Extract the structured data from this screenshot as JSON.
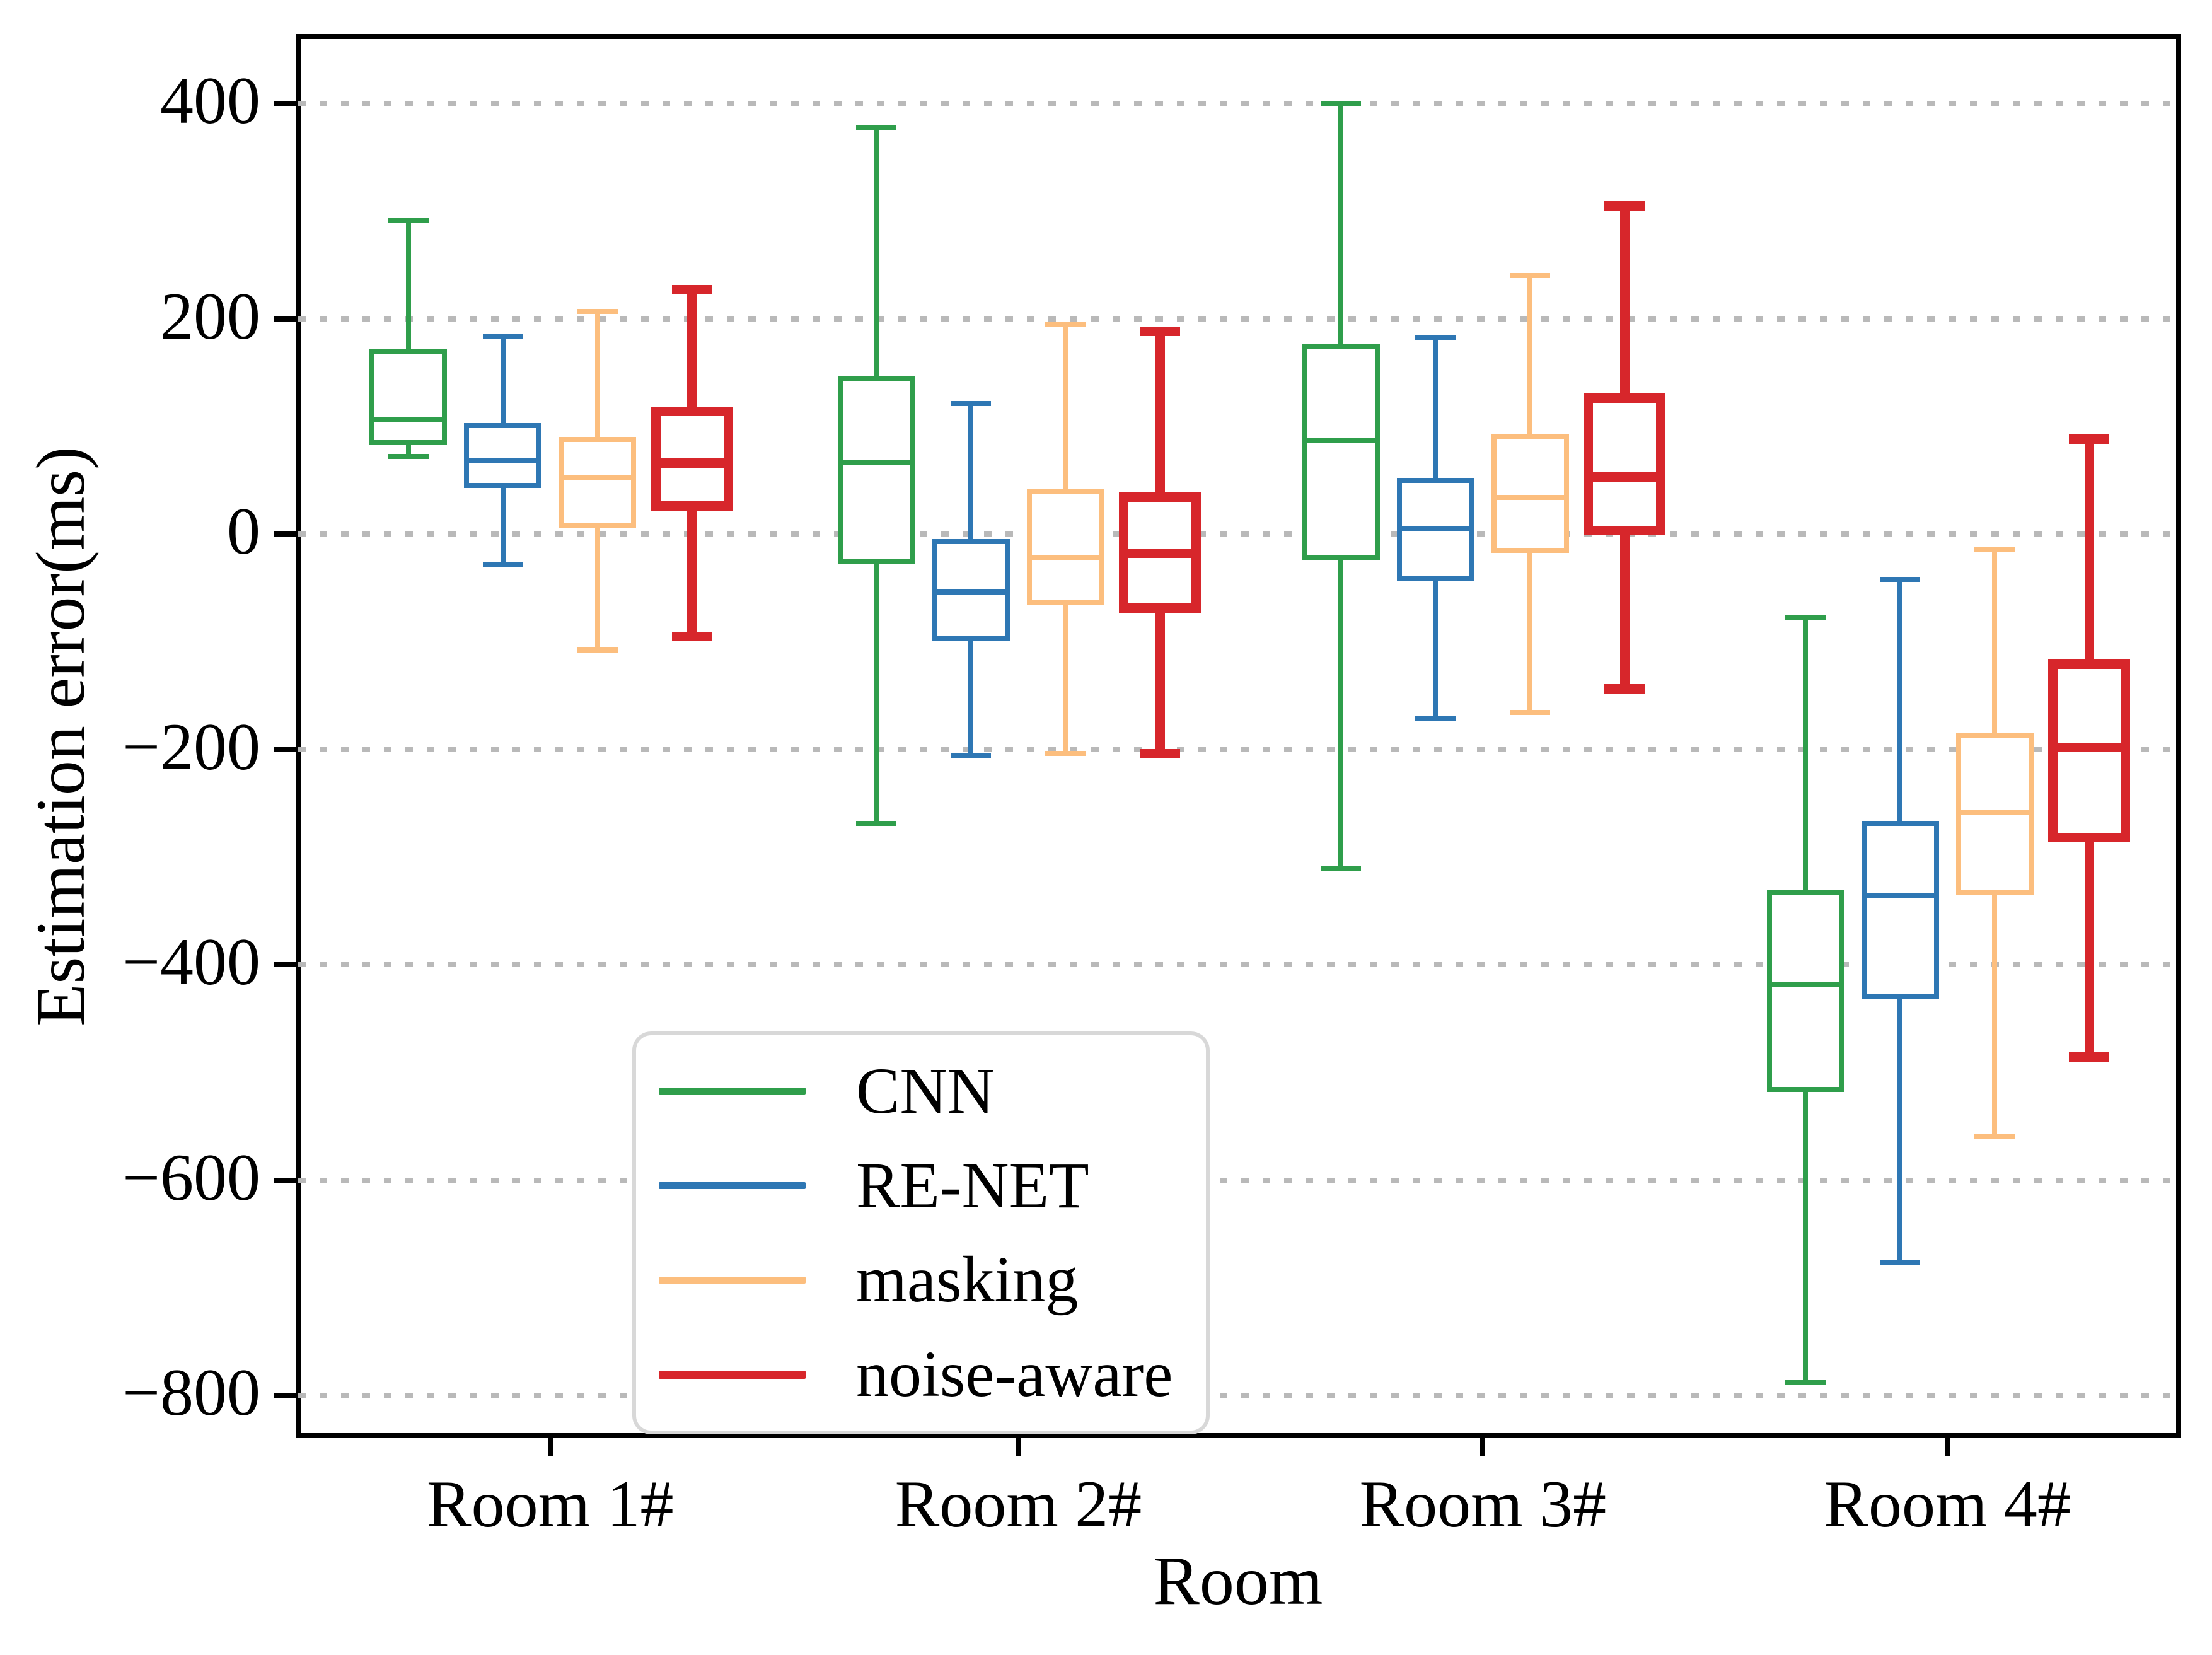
{
  "chart_data": {
    "type": "box",
    "title": "",
    "xlabel": "Room",
    "ylabel": "Estimation error(ms)",
    "categories": [
      "Room 1#",
      "Room 2#",
      "Room 3#",
      "Room 4#"
    ],
    "yticks": [
      400,
      200,
      0,
      -200,
      -400,
      -600,
      -800
    ],
    "ylim": [
      -837,
      462
    ],
    "grid": "horizontal-dotted",
    "grid_color": "#b9b9b9",
    "legend_position": "lower-left",
    "series": [
      {
        "name": "CNN",
        "color": "#2f9e4b",
        "linewidth": 8,
        "boxes": [
          {
            "whislo": 72,
            "q1": 85,
            "med": 106,
            "q3": 169,
            "whishi": 291
          },
          {
            "whislo": -269,
            "q1": -25,
            "med": 67,
            "q3": 144,
            "whishi": 378
          },
          {
            "whislo": -311,
            "q1": -22,
            "med": 87,
            "q3": 174,
            "whishi": 400
          },
          {
            "whislo": -788,
            "q1": -516,
            "med": -419,
            "q3": -333,
            "whishi": -78
          }
        ]
      },
      {
        "name": "RE-NET",
        "color": "#2e77b4",
        "linewidth": 8,
        "boxes": [
          {
            "whislo": -28,
            "q1": 45,
            "med": 68,
            "q3": 101,
            "whishi": 184
          },
          {
            "whislo": -206,
            "q1": -97,
            "med": -54,
            "q3": -7,
            "whishi": 121
          },
          {
            "whislo": -171,
            "q1": -41,
            "med": 5,
            "q3": 50,
            "whishi": 183
          },
          {
            "whislo": -677,
            "q1": -430,
            "med": -336,
            "q3": -269,
            "whishi": -42
          }
        ]
      },
      {
        "name": "masking",
        "color": "#fcbe7e",
        "linewidth": 8,
        "boxes": [
          {
            "whislo": -108,
            "q1": 8,
            "med": 52,
            "q3": 88,
            "whishi": 207
          },
          {
            "whislo": -204,
            "q1": -64,
            "med": -22,
            "q3": 40,
            "whishi": 195
          },
          {
            "whislo": -166,
            "q1": -15,
            "med": 34,
            "q3": 90,
            "whishi": 240
          },
          {
            "whislo": -560,
            "q1": -333,
            "med": -259,
            "q3": -187,
            "whishi": -14
          }
        ]
      },
      {
        "name": "noise-aware",
        "color": "#d7262b",
        "linewidth": 15,
        "boxes": [
          {
            "whislo": -95,
            "q1": 26,
            "med": 66,
            "q3": 114,
            "whishi": 227
          },
          {
            "whislo": -204,
            "q1": -69,
            "med": -18,
            "q3": 34,
            "whishi": 188
          },
          {
            "whislo": -144,
            "q1": 3,
            "med": 53,
            "q3": 126,
            "whishi": 305
          },
          {
            "whislo": -486,
            "q1": -282,
            "med": -198,
            "q3": -121,
            "whishi": 88
          }
        ]
      }
    ]
  }
}
